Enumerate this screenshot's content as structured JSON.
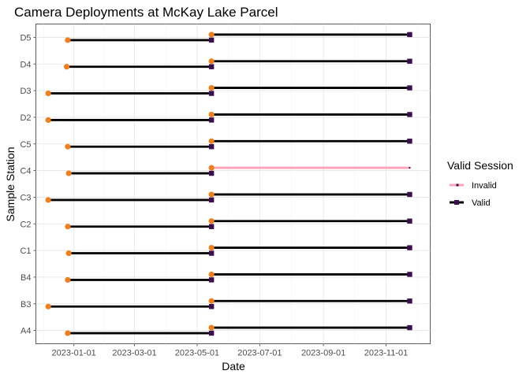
{
  "chart_data": {
    "type": "line",
    "title": "Camera Deployments at McKay Lake Parcel",
    "xlabel": "Date",
    "ylabel": "Sample Station",
    "xlim": [
      "2022-11-25",
      "2023-12-14"
    ],
    "x_ticks": [
      "2023-01-01",
      "2023-03-01",
      "2023-05-01",
      "2023-07-01",
      "2023-09-01",
      "2023-11-01"
    ],
    "categories": [
      "A4",
      "B3",
      "B4",
      "C1",
      "C2",
      "C3",
      "C4",
      "C5",
      "D2",
      "D3",
      "D4",
      "D5"
    ],
    "grid": true,
    "legend": {
      "title": "Valid Session",
      "position": "right",
      "entries": [
        {
          "label": "Invalid",
          "color": "#F8A3B8"
        },
        {
          "label": "Valid",
          "color": "#000000",
          "marker_color": "#3B0F4F"
        }
      ]
    },
    "colors": {
      "valid": "#000000",
      "invalid": "#F8A3B8",
      "start_point": "#F07F1B",
      "end_point": "#3B0F4F"
    },
    "series": [
      {
        "name": "Valid",
        "segments": [
          {
            "station": "A4",
            "start": "2022-12-26",
            "end": "2023-05-15"
          },
          {
            "station": "A4",
            "start": "2023-05-15",
            "end": "2023-11-24"
          },
          {
            "station": "B3",
            "start": "2022-12-07",
            "end": "2023-05-15"
          },
          {
            "station": "B3",
            "start": "2023-05-15",
            "end": "2023-11-24"
          },
          {
            "station": "B4",
            "start": "2022-12-26",
            "end": "2023-05-15"
          },
          {
            "station": "B4",
            "start": "2023-05-15",
            "end": "2023-11-24"
          },
          {
            "station": "C1",
            "start": "2022-12-27",
            "end": "2023-05-15"
          },
          {
            "station": "C1",
            "start": "2023-05-15",
            "end": "2023-11-24"
          },
          {
            "station": "C2",
            "start": "2022-12-26",
            "end": "2023-05-15"
          },
          {
            "station": "C2",
            "start": "2023-05-15",
            "end": "2023-11-24"
          },
          {
            "station": "C3",
            "start": "2022-12-07",
            "end": "2023-05-15"
          },
          {
            "station": "C3",
            "start": "2023-05-15",
            "end": "2023-11-24"
          },
          {
            "station": "C4",
            "start": "2022-12-27",
            "end": "2023-05-15"
          },
          {
            "station": "C5",
            "start": "2022-12-26",
            "end": "2023-05-15"
          },
          {
            "station": "C5",
            "start": "2023-05-15",
            "end": "2023-11-24"
          },
          {
            "station": "D2",
            "start": "2022-12-07",
            "end": "2023-05-15"
          },
          {
            "station": "D2",
            "start": "2023-05-15",
            "end": "2023-11-24"
          },
          {
            "station": "D3",
            "start": "2022-12-07",
            "end": "2023-05-15"
          },
          {
            "station": "D3",
            "start": "2023-05-15",
            "end": "2023-11-24"
          },
          {
            "station": "D4",
            "start": "2022-12-25",
            "end": "2023-05-15"
          },
          {
            "station": "D4",
            "start": "2023-05-15",
            "end": "2023-11-24"
          },
          {
            "station": "D5",
            "start": "2022-12-26",
            "end": "2023-05-15"
          },
          {
            "station": "D5",
            "start": "2023-05-15",
            "end": "2023-11-24"
          }
        ]
      },
      {
        "name": "Invalid",
        "segments": [
          {
            "station": "C4",
            "start": "2023-05-15",
            "end": "2023-11-24"
          }
        ]
      }
    ]
  }
}
